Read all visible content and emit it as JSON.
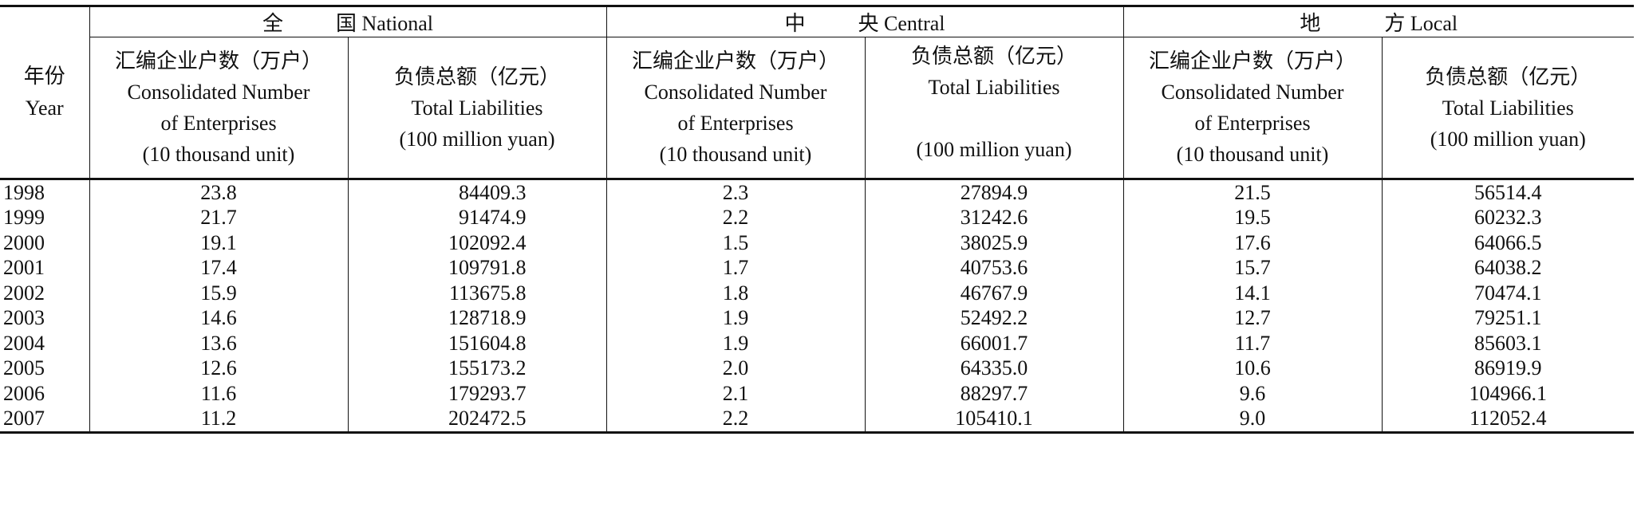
{
  "table": {
    "year_header": {
      "zh": "年份",
      "en": "Year"
    },
    "groups": [
      {
        "zh_a": "全",
        "zh_b": "国",
        "en": "National"
      },
      {
        "zh_a": "中",
        "zh_b": "央",
        "en": "Central"
      },
      {
        "zh_a": "地",
        "zh_b": "方",
        "en": "Local"
      }
    ],
    "sub_headers": {
      "enterprises": {
        "zh": "汇编企业户数（万户）",
        "en1": "Consolidated Number",
        "en2": "of Enterprises",
        "unit": "(10 thousand unit)"
      },
      "liabilities": {
        "zh": "负债总额（亿元）",
        "en": "Total Liabilities",
        "unit": "(100 million yuan)"
      }
    },
    "rows": [
      {
        "year": "1998",
        "nat_n": "23.8",
        "nat_l": "84409.3",
        "cen_n": "2.3",
        "cen_l": "27894.9",
        "loc_n": "21.5",
        "loc_l": "56514.4"
      },
      {
        "year": "1999",
        "nat_n": "21.7",
        "nat_l": "91474.9",
        "cen_n": "2.2",
        "cen_l": "31242.6",
        "loc_n": "19.5",
        "loc_l": "60232.3"
      },
      {
        "year": "2000",
        "nat_n": "19.1",
        "nat_l": "102092.4",
        "cen_n": "1.5",
        "cen_l": "38025.9",
        "loc_n": "17.6",
        "loc_l": "64066.5"
      },
      {
        "year": "2001",
        "nat_n": "17.4",
        "nat_l": "109791.8",
        "cen_n": "1.7",
        "cen_l": "40753.6",
        "loc_n": "15.7",
        "loc_l": "64038.2"
      },
      {
        "year": "2002",
        "nat_n": "15.9",
        "nat_l": "113675.8",
        "cen_n": "1.8",
        "cen_l": "46767.9",
        "loc_n": "14.1",
        "loc_l": "70474.1"
      },
      {
        "year": "2003",
        "nat_n": "14.6",
        "nat_l": "128718.9",
        "cen_n": "1.9",
        "cen_l": "52492.2",
        "loc_n": "12.7",
        "loc_l": "79251.1"
      },
      {
        "year": "2004",
        "nat_n": "13.6",
        "nat_l": "151604.8",
        "cen_n": "1.9",
        "cen_l": "66001.7",
        "loc_n": "11.7",
        "loc_l": "85603.1"
      },
      {
        "year": "2005",
        "nat_n": "12.6",
        "nat_l": "155173.2",
        "cen_n": "2.0",
        "cen_l": "64335.0",
        "loc_n": "10.6",
        "loc_l": "86919.9"
      },
      {
        "year": "2006",
        "nat_n": "11.6",
        "nat_l": "179293.7",
        "cen_n": "2.1",
        "cen_l": "88297.7",
        "loc_n": "9.6",
        "loc_l": "104966.1"
      },
      {
        "year": "2007",
        "nat_n": "11.2",
        "nat_l": "202472.5",
        "cen_n": "2.2",
        "cen_l": "105410.1",
        "loc_n": "9.0",
        "loc_l": "112052.4"
      }
    ]
  }
}
